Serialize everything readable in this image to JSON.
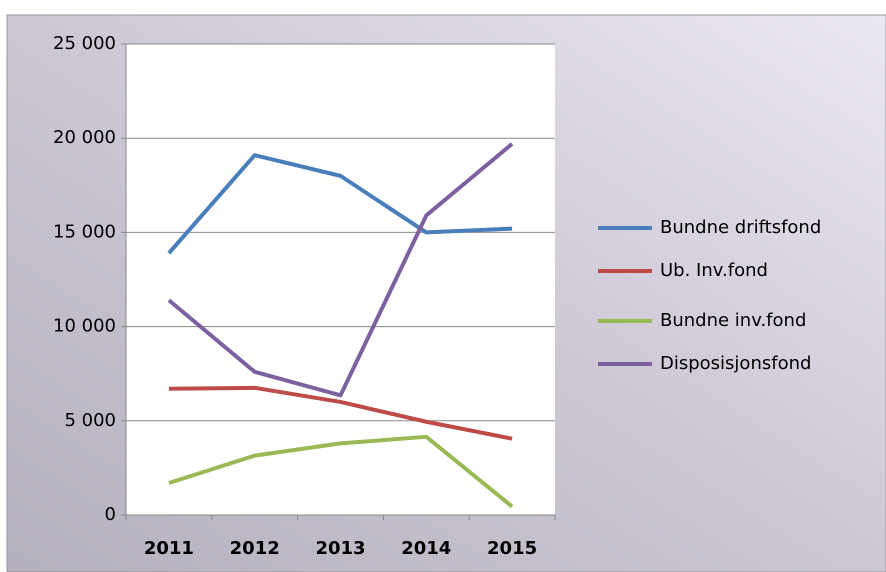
{
  "chart_data": {
    "type": "line",
    "categories": [
      "2011",
      "2012",
      "2013",
      "2014",
      "2015"
    ],
    "series": [
      {
        "name": "Bundne driftsfond",
        "color": "#4a7ebb",
        "values": [
          13900,
          19100,
          18000,
          15000,
          15200
        ]
      },
      {
        "name": "Ub. Inv.fond",
        "color": "#be4b48",
        "values": [
          6700,
          6750,
          6000,
          4950,
          4050
        ]
      },
      {
        "name": "Bundne inv.fond",
        "color": "#98b954",
        "values": [
          1700,
          3150,
          3800,
          4150,
          450
        ]
      },
      {
        "name": "Disposisjonsfond",
        "color": "#7d60a0",
        "values": [
          11400,
          7600,
          6350,
          15900,
          19700
        ]
      }
    ],
    "ylim": [
      0,
      25000
    ],
    "yticks": [
      0,
      {
        "value": 5000,
        "label": "5 000"
      },
      {
        "value": 10000,
        "label": "10 000"
      },
      {
        "value": 15000,
        "label": "15 000"
      },
      {
        "value": 20000,
        "label": "20 000"
      },
      {
        "value": 25000,
        "label": "25 000"
      }
    ],
    "grid": true,
    "legend": "right"
  }
}
